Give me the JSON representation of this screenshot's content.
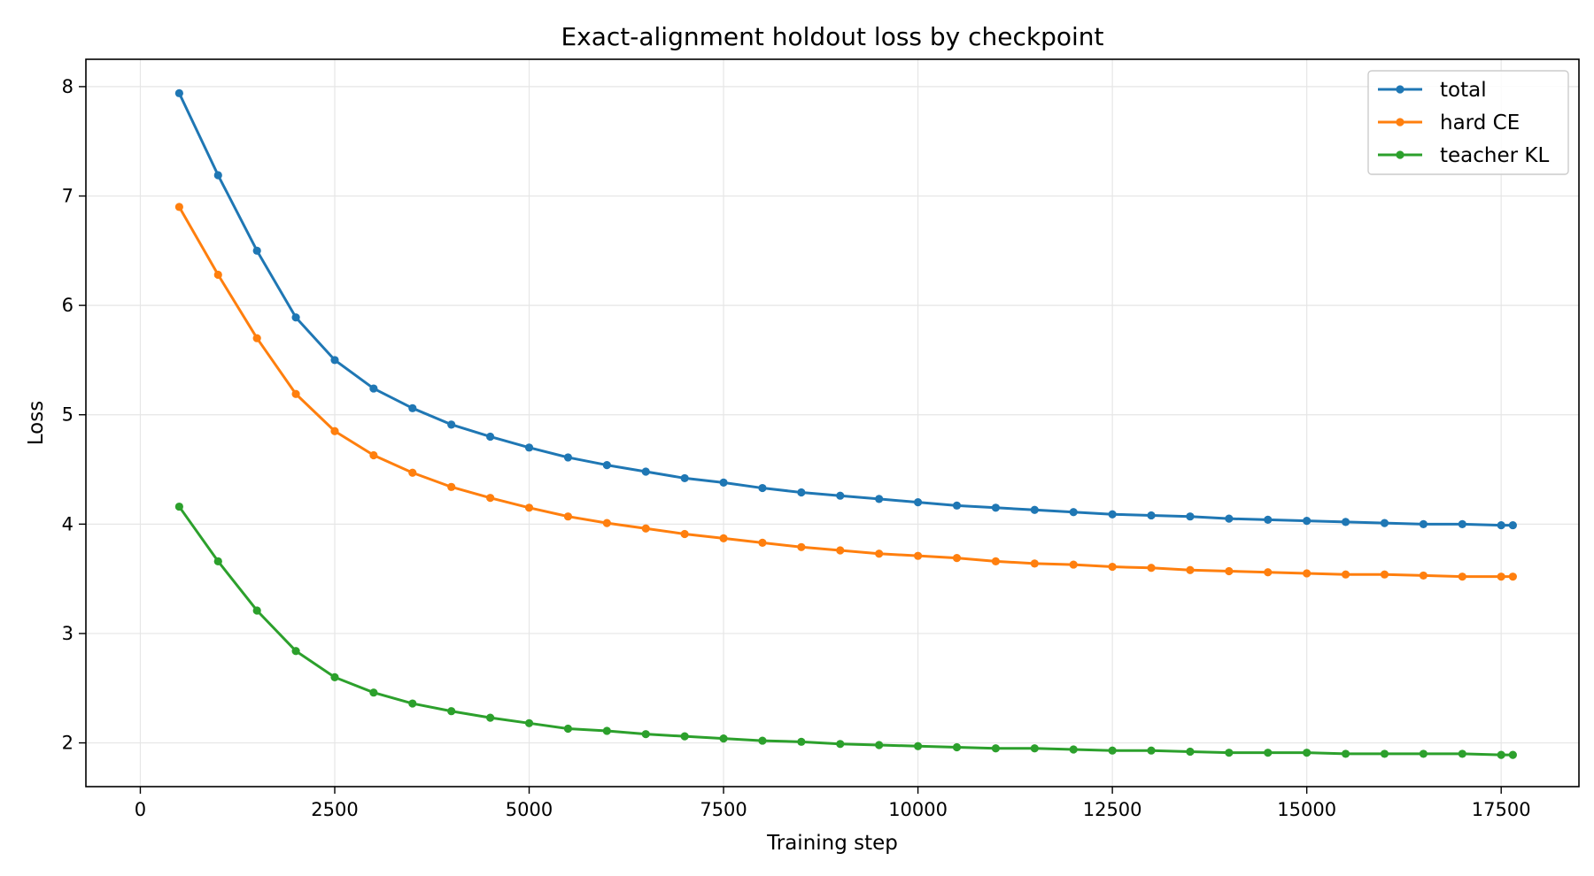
{
  "chart_data": {
    "type": "line",
    "title": "Exact-alignment holdout loss by checkpoint",
    "xlabel": "Training step",
    "ylabel": "Loss",
    "xlim": [
      -700,
      18500
    ],
    "ylim": [
      1.6,
      8.25
    ],
    "xticks": [
      0,
      2500,
      5000,
      7500,
      10000,
      12500,
      15000,
      17500
    ],
    "yticks": [
      2,
      3,
      4,
      5,
      6,
      7,
      8
    ],
    "grid": true,
    "legend": "top-right",
    "x": [
      500,
      1000,
      1500,
      2000,
      2500,
      3000,
      3500,
      4000,
      4500,
      5000,
      5500,
      6000,
      6500,
      7000,
      7500,
      8000,
      8500,
      9000,
      9500,
      10000,
      10500,
      11000,
      11500,
      12000,
      12500,
      13000,
      13500,
      14000,
      14500,
      15000,
      15500,
      16000,
      16500,
      17000,
      17500,
      17650
    ],
    "series": [
      {
        "name": "total",
        "color": "#1f77b4",
        "values": [
          7.94,
          7.19,
          6.5,
          5.89,
          5.5,
          5.24,
          5.06,
          4.91,
          4.8,
          4.7,
          4.61,
          4.54,
          4.48,
          4.42,
          4.38,
          4.33,
          4.29,
          4.26,
          4.23,
          4.2,
          4.17,
          4.15,
          4.13,
          4.11,
          4.09,
          4.08,
          4.07,
          4.05,
          4.04,
          4.03,
          4.02,
          4.01,
          4.0,
          4.0,
          3.99,
          3.99
        ]
      },
      {
        "name": "hard CE",
        "color": "#ff7f0e",
        "values": [
          6.9,
          6.28,
          5.7,
          5.19,
          4.85,
          4.63,
          4.47,
          4.34,
          4.24,
          4.15,
          4.07,
          4.01,
          3.96,
          3.91,
          3.87,
          3.83,
          3.79,
          3.76,
          3.73,
          3.71,
          3.69,
          3.66,
          3.64,
          3.63,
          3.61,
          3.6,
          3.58,
          3.57,
          3.56,
          3.55,
          3.54,
          3.54,
          3.53,
          3.52,
          3.52,
          3.52
        ]
      },
      {
        "name": "teacher KL",
        "color": "#2ca02c",
        "values": [
          4.16,
          3.66,
          3.21,
          2.84,
          2.6,
          2.46,
          2.36,
          2.29,
          2.23,
          2.18,
          2.13,
          2.11,
          2.08,
          2.06,
          2.04,
          2.02,
          2.01,
          1.99,
          1.98,
          1.97,
          1.96,
          1.95,
          1.95,
          1.94,
          1.93,
          1.93,
          1.92,
          1.91,
          1.91,
          1.91,
          1.9,
          1.9,
          1.9,
          1.9,
          1.89,
          1.89
        ]
      }
    ]
  }
}
